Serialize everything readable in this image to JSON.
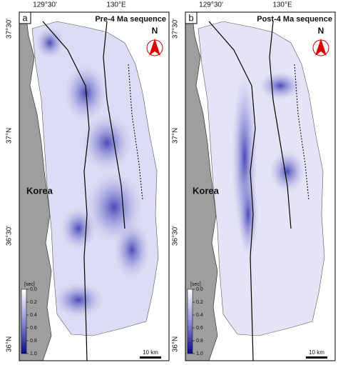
{
  "panels": [
    {
      "label": "a",
      "title": "Pre-4 Ma sequence"
    },
    {
      "label": "b",
      "title": "Post-4 Ma sequence"
    }
  ],
  "longitude_labels": [
    "129°30'",
    "130°E"
  ],
  "latitude_labels": [
    "37°30'",
    "37°N",
    "36°30'",
    "36°N"
  ],
  "land_label": "Korea",
  "north_label": "N",
  "colorbar": {
    "unit": "[sec]",
    "range": [
      0,
      1
    ],
    "ticks": [
      {
        "value": 0,
        "label": "0.0"
      },
      0.2,
      0.4,
      0.6,
      0.8,
      {
        "value": 1,
        "label": "1.0"
      }
    ]
  },
  "scale_bar": "10 km"
}
